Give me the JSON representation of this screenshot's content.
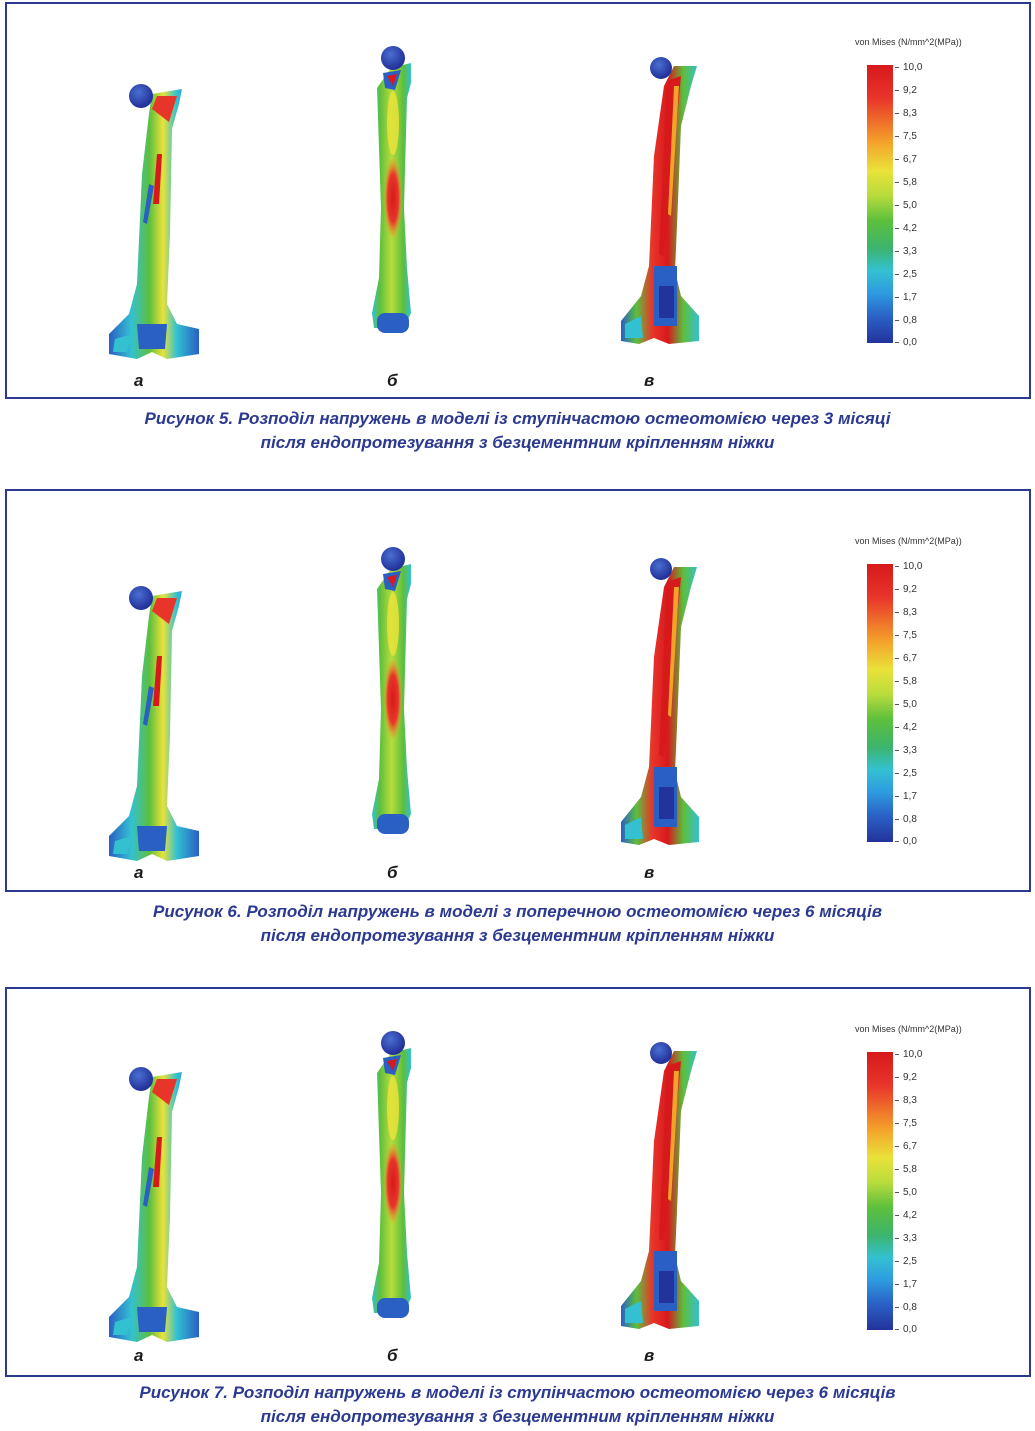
{
  "legend": {
    "title": "von Mises (N/mm^2(MPa))",
    "ticks": [
      "10,0",
      "9,2",
      "8,3",
      "7,5",
      "6,7",
      "5,8",
      "5,0",
      "4,2",
      "3,3",
      "2,5",
      "1,7",
      "0,8",
      "0,0"
    ]
  },
  "figures": [
    {
      "labels": [
        "а",
        "б",
        "в"
      ],
      "caption_line1": "Рисунок 5. Розподіл напружень в моделі із ступінчастою остеотомією через 3 місяці",
      "caption_line2": "після ендопротезування з безцементним кріпленням ніжки"
    },
    {
      "labels": [
        "а",
        "б",
        "в"
      ],
      "caption_line1": "Рисунок 6. Розподіл напружень в моделі з поперечною остеотомією через 6 місяців",
      "caption_line2": "після ендопротезування з безцементним кріпленням ніжки"
    },
    {
      "labels": [
        "а",
        "б",
        "в"
      ],
      "caption_line1": "Рисунок 7. Розподіл напружень в моделі із ступінчастою остеотомією через 6 місяців",
      "caption_line2": "після ендопротезування з безцементним кріпленням ніжки"
    }
  ]
}
